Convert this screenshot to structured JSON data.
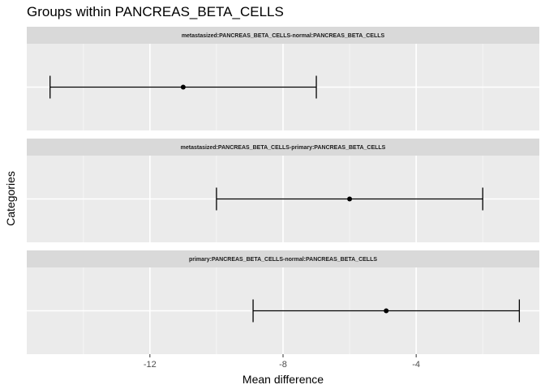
{
  "chart_data": {
    "type": "errorbar",
    "title": "Groups within PANCREAS_BETA_CELLS",
    "xlabel": "Mean difference",
    "ylabel": "Categories",
    "xlim": [
      -15.7,
      -0.3
    ],
    "x_ticks": [
      -12,
      -8,
      -4
    ],
    "x_tick_labels": [
      "-12",
      "-8",
      "-4"
    ],
    "grid": true,
    "panels": [
      {
        "label": "metastasized:PANCREAS_BETA_CELLS-normal:PANCREAS_BETA_CELLS",
        "estimate": -11.0,
        "lower": -15.0,
        "upper": -7.0
      },
      {
        "label": "metastasized:PANCREAS_BETA_CELLS-primary:PANCREAS_BETA_CELLS",
        "estimate": -6.0,
        "lower": -10.0,
        "upper": -2.0
      },
      {
        "label": "primary:PANCREAS_BETA_CELLS-normal:PANCREAS_BETA_CELLS",
        "estimate": -4.9,
        "lower": -8.9,
        "upper": -0.9
      }
    ]
  }
}
